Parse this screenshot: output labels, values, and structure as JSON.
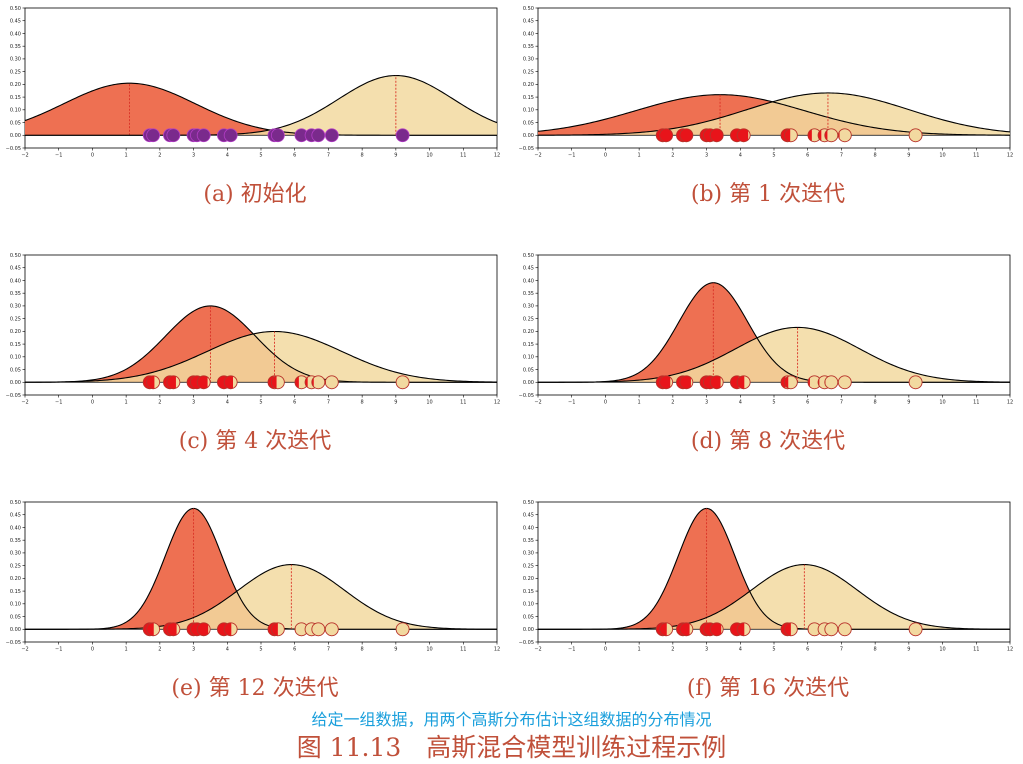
{
  "figure": {
    "subtitle": "给定一组数据，用两个高斯分布估计这组数据的分布情况",
    "title": "图 11.13　高斯混合模型训练过程示例"
  },
  "colors": {
    "comp_a_fill": "#ee7052",
    "comp_b_fill": "#f2d9a0",
    "curve": "#000000",
    "mean_line": "#d93025",
    "caption": "#c0503a",
    "subtitle": "#1a9fdc"
  },
  "chart_data": [
    {
      "type": "area",
      "caption": "(a) 初始化",
      "xlim": [
        -2,
        12
      ],
      "ylim": [
        -0.05,
        0.5
      ],
      "xticks": [
        -2,
        -1,
        0,
        1,
        2,
        3,
        4,
        5,
        6,
        7,
        8,
        9,
        10,
        11,
        12
      ],
      "yticks": [
        -0.05,
        0.0,
        0.05,
        0.1,
        0.15,
        0.2,
        0.25,
        0.3,
        0.35,
        0.4,
        0.45,
        0.5
      ],
      "series": [
        {
          "mean": 1.1,
          "std": 1.95,
          "weight": 1.0
        },
        {
          "mean": 9.0,
          "std": 1.7,
          "weight": 1.0
        }
      ],
      "points": [
        1.7,
        1.8,
        2.3,
        2.4,
        3.0,
        3.1,
        3.3,
        3.9,
        4.1,
        5.4,
        5.5,
        6.2,
        6.5,
        6.7,
        7.1,
        9.2
      ],
      "responsibility_a": [
        0.5,
        0.5,
        0.5,
        0.5,
        0.5,
        0.5,
        0.5,
        0.5,
        0.5,
        0.5,
        0.5,
        0.5,
        0.5,
        0.5,
        0.5,
        0.5
      ],
      "point_style": "initial"
    },
    {
      "type": "area",
      "caption": "(b) 第 1 次迭代",
      "xlim": [
        -2,
        12
      ],
      "ylim": [
        -0.05,
        0.5
      ],
      "xticks": [
        -2,
        -1,
        0,
        1,
        2,
        3,
        4,
        5,
        6,
        7,
        8,
        9,
        10,
        11,
        12
      ],
      "yticks": [
        -0.05,
        0.0,
        0.05,
        0.1,
        0.15,
        0.2,
        0.25,
        0.3,
        0.35,
        0.4,
        0.45,
        0.5
      ],
      "series": [
        {
          "mean": 3.4,
          "std": 2.5,
          "weight": 1.0
        },
        {
          "mean": 6.6,
          "std": 2.4,
          "weight": 1.0
        }
      ],
      "points": [
        1.7,
        1.8,
        2.3,
        2.4,
        3.0,
        3.1,
        3.3,
        3.9,
        4.1,
        5.4,
        5.5,
        6.2,
        6.5,
        6.7,
        7.1,
        9.2
      ],
      "responsibility_a": [
        1,
        1,
        1,
        1,
        1,
        1,
        1,
        0.92,
        0.85,
        0.5,
        0.45,
        0.3,
        0.25,
        0.2,
        0.1,
        0
      ],
      "point_style": "split"
    },
    {
      "type": "area",
      "caption": "(c) 第 4 次迭代",
      "xlim": [
        -2,
        12
      ],
      "ylim": [
        -0.05,
        0.5
      ],
      "xticks": [
        -2,
        -1,
        0,
        1,
        2,
        3,
        4,
        5,
        6,
        7,
        8,
        9,
        10,
        11,
        12
      ],
      "yticks": [
        -0.05,
        0.0,
        0.05,
        0.1,
        0.15,
        0.2,
        0.25,
        0.3,
        0.35,
        0.4,
        0.45,
        0.5
      ],
      "series": [
        {
          "mean": 3.5,
          "std": 1.33,
          "weight": 1.0
        },
        {
          "mean": 5.4,
          "std": 2.0,
          "weight": 1.0
        }
      ],
      "points": [
        1.7,
        1.8,
        2.3,
        2.4,
        3.0,
        3.1,
        3.3,
        3.9,
        4.1,
        5.4,
        5.5,
        6.2,
        6.5,
        6.7,
        7.1,
        9.2
      ],
      "responsibility_a": [
        0.55,
        0.6,
        0.65,
        0.7,
        0.75,
        0.78,
        0.8,
        0.72,
        0.68,
        0.45,
        0.4,
        0.3,
        0.2,
        0.15,
        0.05,
        0
      ],
      "point_style": "split"
    },
    {
      "type": "area",
      "caption": "(d) 第 8 次迭代",
      "xlim": [
        -2,
        12
      ],
      "ylim": [
        -0.05,
        0.5
      ],
      "xticks": [
        -2,
        -1,
        0,
        1,
        2,
        3,
        4,
        5,
        6,
        7,
        8,
        9,
        10,
        11,
        12
      ],
      "yticks": [
        -0.05,
        0.0,
        0.05,
        0.1,
        0.15,
        0.2,
        0.25,
        0.3,
        0.35,
        0.4,
        0.45,
        0.5
      ],
      "series": [
        {
          "mean": 3.2,
          "std": 1.02,
          "weight": 1.0
        },
        {
          "mean": 5.7,
          "std": 1.85,
          "weight": 1.0
        }
      ],
      "points": [
        1.7,
        1.8,
        2.3,
        2.4,
        3.0,
        3.1,
        3.3,
        3.9,
        4.1,
        5.4,
        5.5,
        6.2,
        6.5,
        6.7,
        7.1,
        9.2
      ],
      "responsibility_a": [
        0.8,
        0.82,
        0.85,
        0.85,
        0.85,
        0.82,
        0.8,
        0.65,
        0.55,
        0.35,
        0.3,
        0.15,
        0.1,
        0.05,
        0,
        0
      ],
      "point_style": "split"
    },
    {
      "type": "area",
      "caption": "(e) 第 12 次迭代",
      "xlim": [
        -2,
        12
      ],
      "ylim": [
        -0.05,
        0.5
      ],
      "xticks": [
        -2,
        -1,
        0,
        1,
        2,
        3,
        4,
        5,
        6,
        7,
        8,
        9,
        10,
        11,
        12
      ],
      "yticks": [
        -0.05,
        0.0,
        0.05,
        0.1,
        0.15,
        0.2,
        0.25,
        0.3,
        0.35,
        0.4,
        0.45,
        0.5
      ],
      "series": [
        {
          "mean": 3.0,
          "std": 0.84,
          "weight": 1.0
        },
        {
          "mean": 5.9,
          "std": 1.57,
          "weight": 1.0
        }
      ],
      "points": [
        1.7,
        1.8,
        2.3,
        2.4,
        3.0,
        3.1,
        3.3,
        3.9,
        4.1,
        5.4,
        5.5,
        6.2,
        6.5,
        6.7,
        7.1,
        9.2
      ],
      "responsibility_a": [
        0.5,
        0.55,
        0.7,
        0.75,
        0.9,
        0.9,
        0.85,
        0.7,
        0.55,
        0.55,
        0.5,
        0.05,
        0.03,
        0.02,
        0,
        0
      ],
      "point_style": "split"
    },
    {
      "type": "area",
      "caption": "(f) 第 16 次迭代",
      "xlim": [
        -2,
        12
      ],
      "ylim": [
        -0.05,
        0.5
      ],
      "xticks": [
        -2,
        -1,
        0,
        1,
        2,
        3,
        4,
        5,
        6,
        7,
        8,
        9,
        10,
        11,
        12
      ],
      "yticks": [
        -0.05,
        0.0,
        0.05,
        0.1,
        0.15,
        0.2,
        0.25,
        0.3,
        0.35,
        0.4,
        0.45,
        0.5
      ],
      "series": [
        {
          "mean": 3.0,
          "std": 0.84,
          "weight": 1.0
        },
        {
          "mean": 5.9,
          "std": 1.57,
          "weight": 1.0
        }
      ],
      "points": [
        1.7,
        1.8,
        2.3,
        2.4,
        3.0,
        3.1,
        3.3,
        3.9,
        4.1,
        5.4,
        5.5,
        6.2,
        6.5,
        6.7,
        7.1,
        9.2
      ],
      "responsibility_a": [
        0.5,
        0.55,
        0.7,
        0.75,
        0.9,
        0.9,
        0.85,
        0.7,
        0.55,
        0.55,
        0.5,
        0.05,
        0.03,
        0.02,
        0,
        0
      ],
      "point_style": "split"
    }
  ]
}
